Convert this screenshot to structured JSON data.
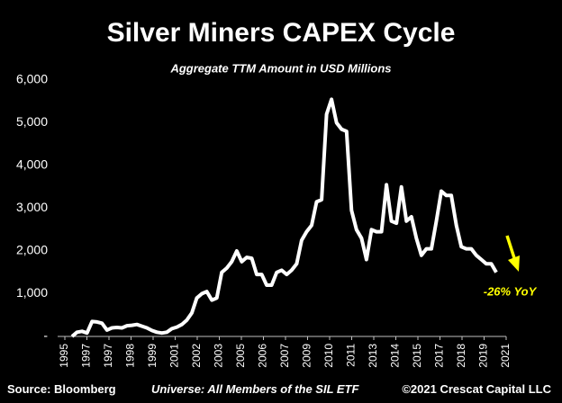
{
  "chart_data": {
    "type": "line",
    "title": "Silver Miners CAPEX Cycle",
    "subtitle": "Aggregate TTM Amount in USD Millions",
    "xtick_labels": [
      "1995",
      "1997",
      "1997",
      "1998",
      "1999",
      "2001",
      "2002",
      "2003",
      "2005",
      "2006",
      "2007",
      "2009",
      "2010",
      "2011",
      "2013",
      "2014",
      "2015",
      "2017",
      "2018",
      "2019",
      "2021"
    ],
    "series": [
      {
        "name": "Silver Miners CAPEX",
        "color": "#ffffff",
        "values": [
          0,
          100,
          120,
          80,
          350,
          340,
          310,
          150,
          200,
          210,
          200,
          250,
          260,
          280,
          240,
          200,
          140,
          100,
          80,
          100,
          180,
          220,
          280,
          380,
          550,
          900,
          1000,
          1050,
          850,
          900,
          1500,
          1600,
          1750,
          2000,
          1750,
          1850,
          1830,
          1450,
          1450,
          1200,
          1200,
          1500,
          1550,
          1450,
          1550,
          1700,
          2250,
          2450,
          2600,
          3150,
          3200,
          5200,
          5550,
          5000,
          4850,
          4800,
          2950,
          2500,
          2300,
          1800,
          2500,
          2450,
          2450,
          3550,
          2700,
          2650,
          3500,
          2700,
          2800,
          2300,
          1900,
          2050,
          2050,
          2700,
          3400,
          3300,
          3300,
          2600,
          2100,
          2050,
          2050,
          1900,
          1800,
          1700,
          1700,
          1500
        ]
      }
    ],
    "ylim": [
      0,
      6000
    ],
    "yticks": [
      {
        "value": 0,
        "label": "-"
      },
      {
        "value": 1000,
        "label": "1,000"
      },
      {
        "value": 2000,
        "label": "2,000"
      },
      {
        "value": 3000,
        "label": "3,000"
      },
      {
        "value": 4000,
        "label": "4,000"
      },
      {
        "value": 5000,
        "label": "5,000"
      },
      {
        "value": 6000,
        "label": "6,000"
      }
    ],
    "annotation": "-26% YoY",
    "annotation_color": "#ffff00",
    "source": "Source: Bloomberg",
    "universe": "Universe: All Members of the SIL ETF",
    "copyright": "©2021 Crescat Capital LLC"
  }
}
